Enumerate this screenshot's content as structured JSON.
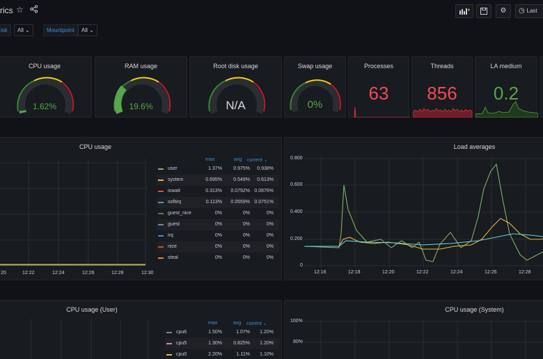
{
  "header": {
    "title": "rics",
    "btn_last": "Last",
    "var1_label": "isk",
    "var1_value": "All",
    "var2_label": "Mountpoint",
    "var2_value": "All"
  },
  "stats": {
    "cpu": {
      "title": "CPU usage",
      "value": "1.62%",
      "fraction": 0.0162
    },
    "ram": {
      "title": "RAM usage",
      "value": "19.6%",
      "fraction": 0.196
    },
    "disk": {
      "title": "Root disk usage",
      "value": "N/A"
    },
    "swap": {
      "title": "Swap usage",
      "value": "0%",
      "fraction": 0
    },
    "processes": {
      "title": "Processes",
      "value": "63"
    },
    "threads": {
      "title": "Threads",
      "value": "856"
    },
    "la": {
      "title": "LA medium",
      "value": "0.2"
    }
  },
  "cpu_panel": {
    "title": "CPU usage",
    "x_ticks": [
      "20",
      "12:22",
      "12:24",
      "12:26",
      "12:28",
      "12:30"
    ],
    "legend_head": {
      "max": "max",
      "avg": "avg",
      "current": "current"
    },
    "legend": [
      {
        "name": "user",
        "color": "#7eb26d",
        "max": "1.37%",
        "avg": "0.975%",
        "current": "0.938%"
      },
      {
        "name": "system",
        "color": "#eab839",
        "max": "0.695%",
        "avg": "0.549%",
        "current": "0.613%"
      },
      {
        "name": "iowait",
        "color": "#e24d42",
        "max": "0.313%",
        "avg": "0.0792%",
        "current": "0.0876%"
      },
      {
        "name": "softirq",
        "color": "#5195ce",
        "max": "0.113%",
        "avg": "0.0559%",
        "current": "0.0751%"
      },
      {
        "name": "guest_nice",
        "color": "#508642",
        "max": "0%",
        "avg": "0%",
        "current": "0%"
      },
      {
        "name": "guest",
        "color": "#6d8ca3",
        "max": "0%",
        "avg": "0%",
        "current": "0%"
      },
      {
        "name": "irq",
        "color": "#3d8fe0",
        "max": "0%",
        "avg": "0%",
        "current": "0%"
      },
      {
        "name": "nice",
        "color": "#c15c17",
        "max": "0%",
        "avg": "0%",
        "current": "0%"
      },
      {
        "name": "steal",
        "color": "#ef843c",
        "max": "0%",
        "avg": "0%",
        "current": "0%"
      }
    ]
  },
  "load_panel": {
    "title": "Load averages",
    "y_ticks": [
      "0.800",
      "0.600",
      "0.400",
      "0.200",
      "0"
    ],
    "x_ticks": [
      "12:16",
      "12:18",
      "12:20",
      "12:22",
      "12:24",
      "12:26",
      "12:28"
    ]
  },
  "user_panel": {
    "title": "CPU usage (User)",
    "legend_head": {
      "max": "max",
      "avg": "avg",
      "current": "current"
    },
    "legend": [
      {
        "name": "cpu6",
        "color": "#6d8ca3",
        "max": "1.50%",
        "avg": "1.07%",
        "current": "1.20%"
      },
      {
        "name": "cpu5",
        "color": "#d683ce",
        "max": "1.30%",
        "avg": "0.825%",
        "current": "1.20%"
      },
      {
        "name": "cpu0",
        "color": "#eab839",
        "max": "2.20%",
        "avg": "1.11%",
        "current": "1.10%"
      }
    ]
  },
  "system_panel": {
    "title": "CPU usage (System)",
    "y_ticks": [
      "100%",
      "80%"
    ]
  }
}
